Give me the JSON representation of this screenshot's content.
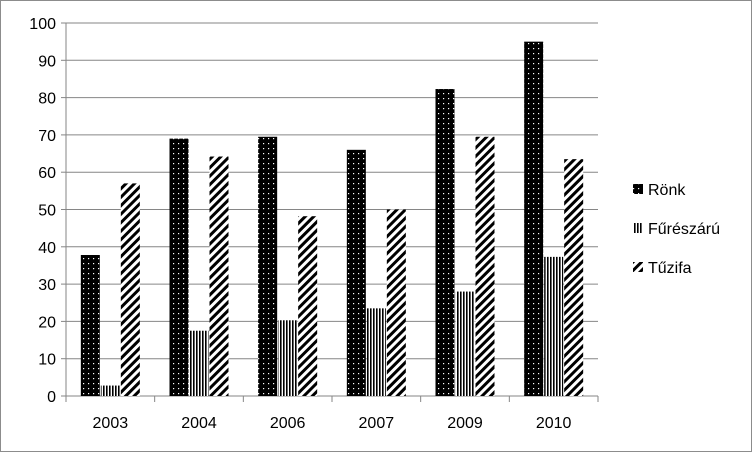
{
  "chart_data": {
    "type": "bar",
    "title": "",
    "xlabel": "",
    "ylabel": "",
    "ylim": [
      0,
      100
    ],
    "yticks": [
      0,
      10,
      20,
      30,
      40,
      50,
      60,
      70,
      80,
      90,
      100
    ],
    "grid": true,
    "legend_position": "right",
    "categories": [
      "2003",
      "2004",
      "2006",
      "2007",
      "2009",
      "2010"
    ],
    "series": [
      {
        "name": "Rönk",
        "pattern": "dots",
        "values": [
          37.8,
          69,
          69.5,
          66,
          82.3,
          95
        ]
      },
      {
        "name": "Fűrészárú",
        "pattern": "vertical-stripes",
        "values": [
          2.8,
          17.5,
          20.3,
          23.5,
          28,
          37.3
        ]
      },
      {
        "name": "Tűzifa",
        "pattern": "diagonal-stripes",
        "values": [
          57,
          64.2,
          48.2,
          50,
          69.5,
          63.5
        ]
      }
    ],
    "colors": {
      "ink": "#000000",
      "grid": "#868686",
      "frame": "#8c8c8c"
    }
  }
}
